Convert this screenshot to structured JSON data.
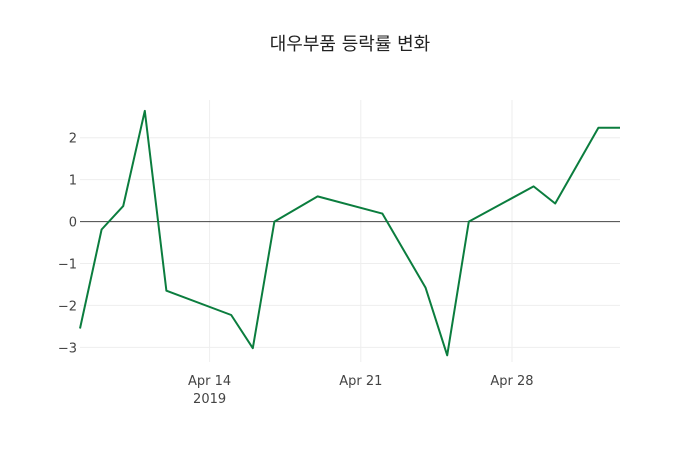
{
  "chart_data": {
    "type": "line",
    "title": "대우부품 등락률 변화",
    "xlabel": "",
    "ylabel": "",
    "x": [
      "2019-04-08",
      "2019-04-09",
      "2019-04-10",
      "2019-04-11",
      "2019-04-12",
      "2019-04-15",
      "2019-04-16",
      "2019-04-17",
      "2019-04-19",
      "2019-04-22",
      "2019-04-24",
      "2019-04-25",
      "2019-04-26",
      "2019-04-29",
      "2019-04-30",
      "2019-05-02",
      "2019-05-03"
    ],
    "series": [
      {
        "name": "등락률",
        "color": "#0b7d3e",
        "values": [
          -2.55,
          -0.19,
          0.37,
          2.64,
          -1.65,
          -2.23,
          -3.02,
          0,
          0.6,
          0.19,
          -1.58,
          -3.19,
          0,
          0.84,
          0.43,
          2.24,
          2.24
        ]
      }
    ],
    "xlim": [
      "2019-04-08",
      "2019-05-03"
    ],
    "ylim": [
      -3.35,
      2.9
    ],
    "yticks": [
      2,
      1,
      0,
      -1,
      -2,
      -3
    ],
    "ytick_labels": [
      "2",
      "1",
      "0",
      "−1",
      "−2",
      "−3"
    ],
    "xticks": [
      "2019-04-14",
      "2019-04-21",
      "2019-04-28"
    ],
    "xtick_labels": [
      "Apr 14",
      "Apr 21",
      "Apr 28"
    ],
    "xtick_sublabel": "2019",
    "grid": true
  }
}
